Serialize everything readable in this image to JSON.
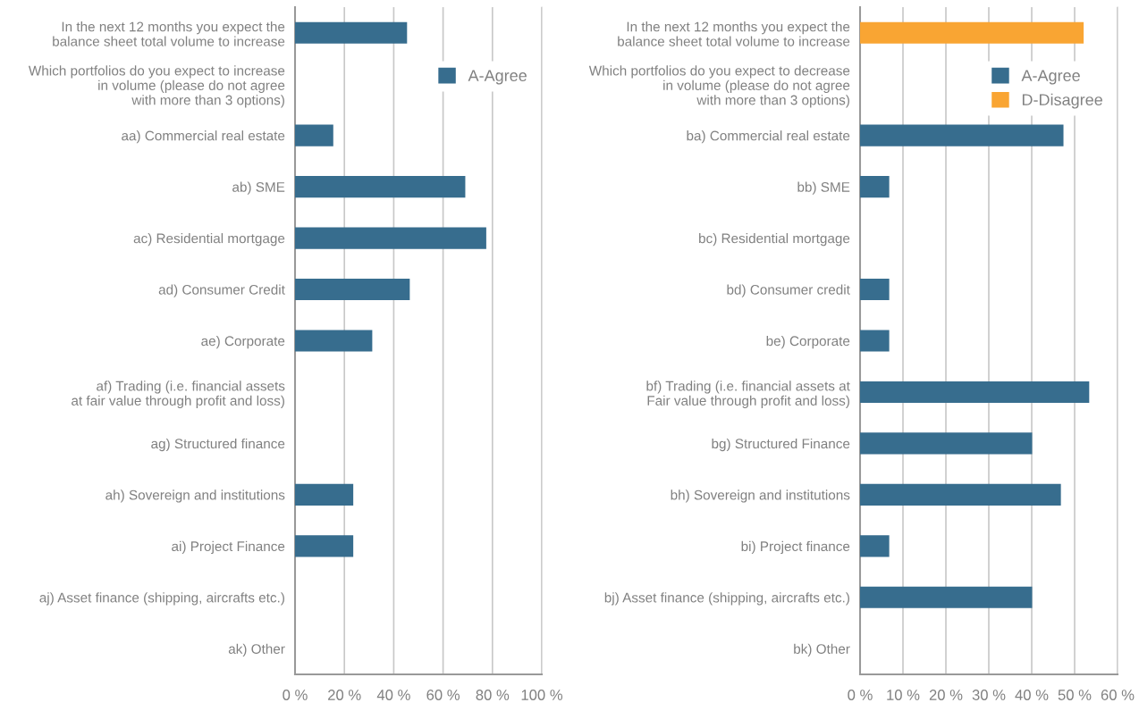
{
  "chart_data": [
    {
      "type": "bar",
      "orientation": "horizontal",
      "categories": [
        "In the next 12 months you expect the\nbalance sheet total volume to increase",
        "Which portfolios do you expect to increase\nin volume (please do not agree\nwith more than 3 options)",
        "aa) Commercial real estate",
        "ab) SME",
        "ac) Residential mortgage",
        "ad) Consumer Credit",
        "ae) Corporate",
        "af) Trading (i.e. financial assets\nat fair value through profit and loss)",
        "ag) Structured finance",
        "ah) Sovereign and institutions",
        "ai) Project Finance",
        "aj) Asset finance (shipping, aircrafts etc.)",
        "ak) Other"
      ],
      "series": [
        {
          "name": "A-Agree",
          "color": "#376d8e",
          "values": [
            45.4,
            null,
            15.5,
            69.0,
            77.5,
            46.5,
            31.3,
            null,
            null,
            23.6,
            23.6,
            null,
            null
          ]
        }
      ],
      "xlim": [
        0,
        100
      ],
      "xticks": [
        {
          "value": 0,
          "label": "0 %"
        },
        {
          "value": 20,
          "label": "20 %"
        },
        {
          "value": 40,
          "label": "40 %"
        },
        {
          "value": 60,
          "label": "60 %"
        },
        {
          "value": 80,
          "label": "80 %"
        },
        {
          "value": 100,
          "label": "100 %"
        }
      ],
      "grid": "x",
      "legend": "top right"
    },
    {
      "type": "bar",
      "orientation": "horizontal",
      "categories": [
        "In the next 12 months you expect the\nbalance sheet total volume to increase",
        "Which portfolios do you expect to decrease\nin volume (please do not agree\nwith more than 3 options)",
        "ba) Commercial real estate",
        "bb) SME",
        "bc) Residential mortgage",
        "bd) Consumer credit",
        "be) Corporate",
        "bf) Trading (i.e. financial assets at\nFair value through profit and loss)",
        "bg) Structured Finance",
        "bh) Sovereign and institutions",
        "bi) Project finance",
        "bj) Asset finance (shipping, aircrafts etc.)",
        "bk) Other"
      ],
      "series": [
        {
          "name": "A-Agree",
          "color": "#376d8e",
          "values": [
            null,
            null,
            47.4,
            6.8,
            null,
            6.8,
            6.8,
            53.4,
            40.1,
            46.8,
            6.8,
            40.1,
            null
          ]
        },
        {
          "name": "D-Disagree",
          "color": "#f9a533",
          "values": [
            52.1,
            null,
            null,
            null,
            null,
            null,
            null,
            null,
            null,
            null,
            null,
            null,
            null
          ]
        }
      ],
      "xlim": [
        0,
        60
      ],
      "xticks": [
        {
          "value": 0,
          "label": "0 %"
        },
        {
          "value": 10,
          "label": "10 %"
        },
        {
          "value": 20,
          "label": "20 %"
        },
        {
          "value": 30,
          "label": "30 %"
        },
        {
          "value": 40,
          "label": "40 %"
        },
        {
          "value": 50,
          "label": "50 %"
        },
        {
          "value": 60,
          "label": "60 %"
        }
      ],
      "grid": "x",
      "legend": "top right"
    }
  ]
}
